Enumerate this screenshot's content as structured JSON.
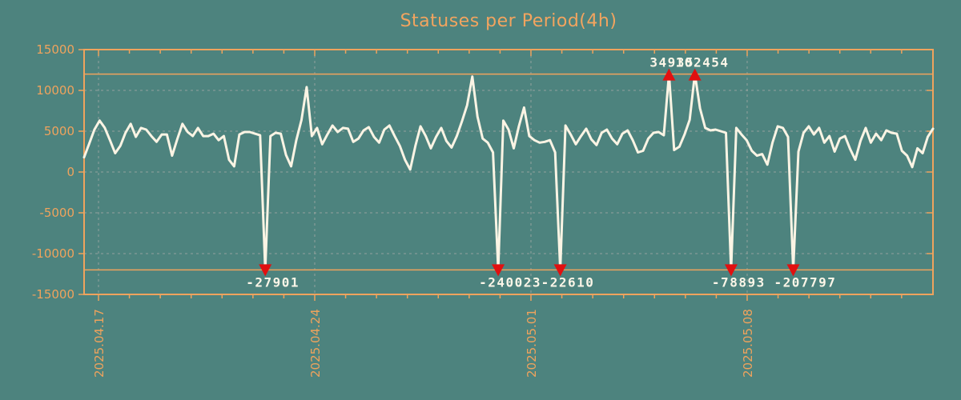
{
  "title": "Statuses per Period(4h)",
  "colors": {
    "background": "#4d837e",
    "axis_orange": "#efa35d",
    "grid_gray": "#9fa8a3",
    "series_line": "#fbf4e4",
    "marker_red": "#e11010",
    "annotation_text": "#fdf6e8"
  },
  "chart_data": {
    "type": "line",
    "title": "Statuses per Period(4h)",
    "period": "4h",
    "ylabel": "",
    "xlabel": "",
    "ylim": [
      -15000,
      15000
    ],
    "yticks": [
      -15000,
      -10000,
      -5000,
      0,
      5000,
      10000,
      15000
    ],
    "x_tick_labels": [
      "2025.04.17",
      "2025.04.24",
      "2025.05.01",
      "2025.05.08"
    ],
    "x_minor_tick_interval": "1 day",
    "x_major_tick_interval": "7 days",
    "grid": true,
    "legend": "none",
    "clip_value": 12000,
    "threshold_lines": [
      12000,
      -12000
    ],
    "annotations": [
      {
        "value": -27901,
        "side": "bottom"
      },
      {
        "value": -240023,
        "side": "bottom"
      },
      {
        "value": -22610,
        "side": "bottom"
      },
      {
        "value": 34935,
        "side": "top"
      },
      {
        "value": 102454,
        "side": "top"
      },
      {
        "value": -78893,
        "side": "bottom"
      },
      {
        "value": -207797,
        "side": "bottom"
      }
    ],
    "values": [
      1800,
      3500,
      5200,
      6300,
      5400,
      3900,
      2300,
      3200,
      4800,
      5900,
      4300,
      5400,
      5200,
      4400,
      3700,
      4600,
      4600,
      2000,
      4000,
      5900,
      4900,
      4400,
      5400,
      4400,
      4400,
      4700,
      3900,
      4400,
      1500,
      700,
      4600,
      4900,
      4900,
      4700,
      4500,
      -27901,
      4400,
      4800,
      4700,
      2100,
      700,
      3900,
      6400,
      10400,
      4400,
      5400,
      3400,
      4600,
      5700,
      4900,
      5400,
      5300,
      3700,
      4100,
      5100,
      5500,
      4300,
      3600,
      5200,
      5700,
      4400,
      3200,
      1500,
      300,
      3200,
      5600,
      4400,
      2900,
      4300,
      5400,
      3800,
      3000,
      4400,
      6200,
      8200,
      11700,
      6800,
      4100,
      3600,
      2400,
      -240023,
      6300,
      5200,
      2900,
      5600,
      7900,
      4400,
      3900,
      3600,
      3700,
      3900,
      2400,
      -22610,
      5700,
      4600,
      3400,
      4400,
      5300,
      4000,
      3300,
      4800,
      5200,
      4100,
      3400,
      4700,
      5100,
      3900,
      2400,
      2600,
      4100,
      4800,
      4900,
      4500,
      34935,
      2700,
      3100,
      4600,
      6400,
      102454,
      7800,
      5400,
      5100,
      5200,
      5000,
      4800,
      -78893,
      5400,
      4600,
      3900,
      2600,
      2000,
      2200,
      900,
      3600,
      5600,
      5400,
      4300,
      -207797,
      2500,
      4800,
      5600,
      4600,
      5400,
      3600,
      4400,
      2500,
      4100,
      4400,
      2800,
      1500,
      3800,
      5400,
      3600,
      4700,
      3900,
      5100,
      4800,
      4700,
      2600,
      2000,
      600,
      2900,
      2300,
      4300,
      5300
    ]
  }
}
